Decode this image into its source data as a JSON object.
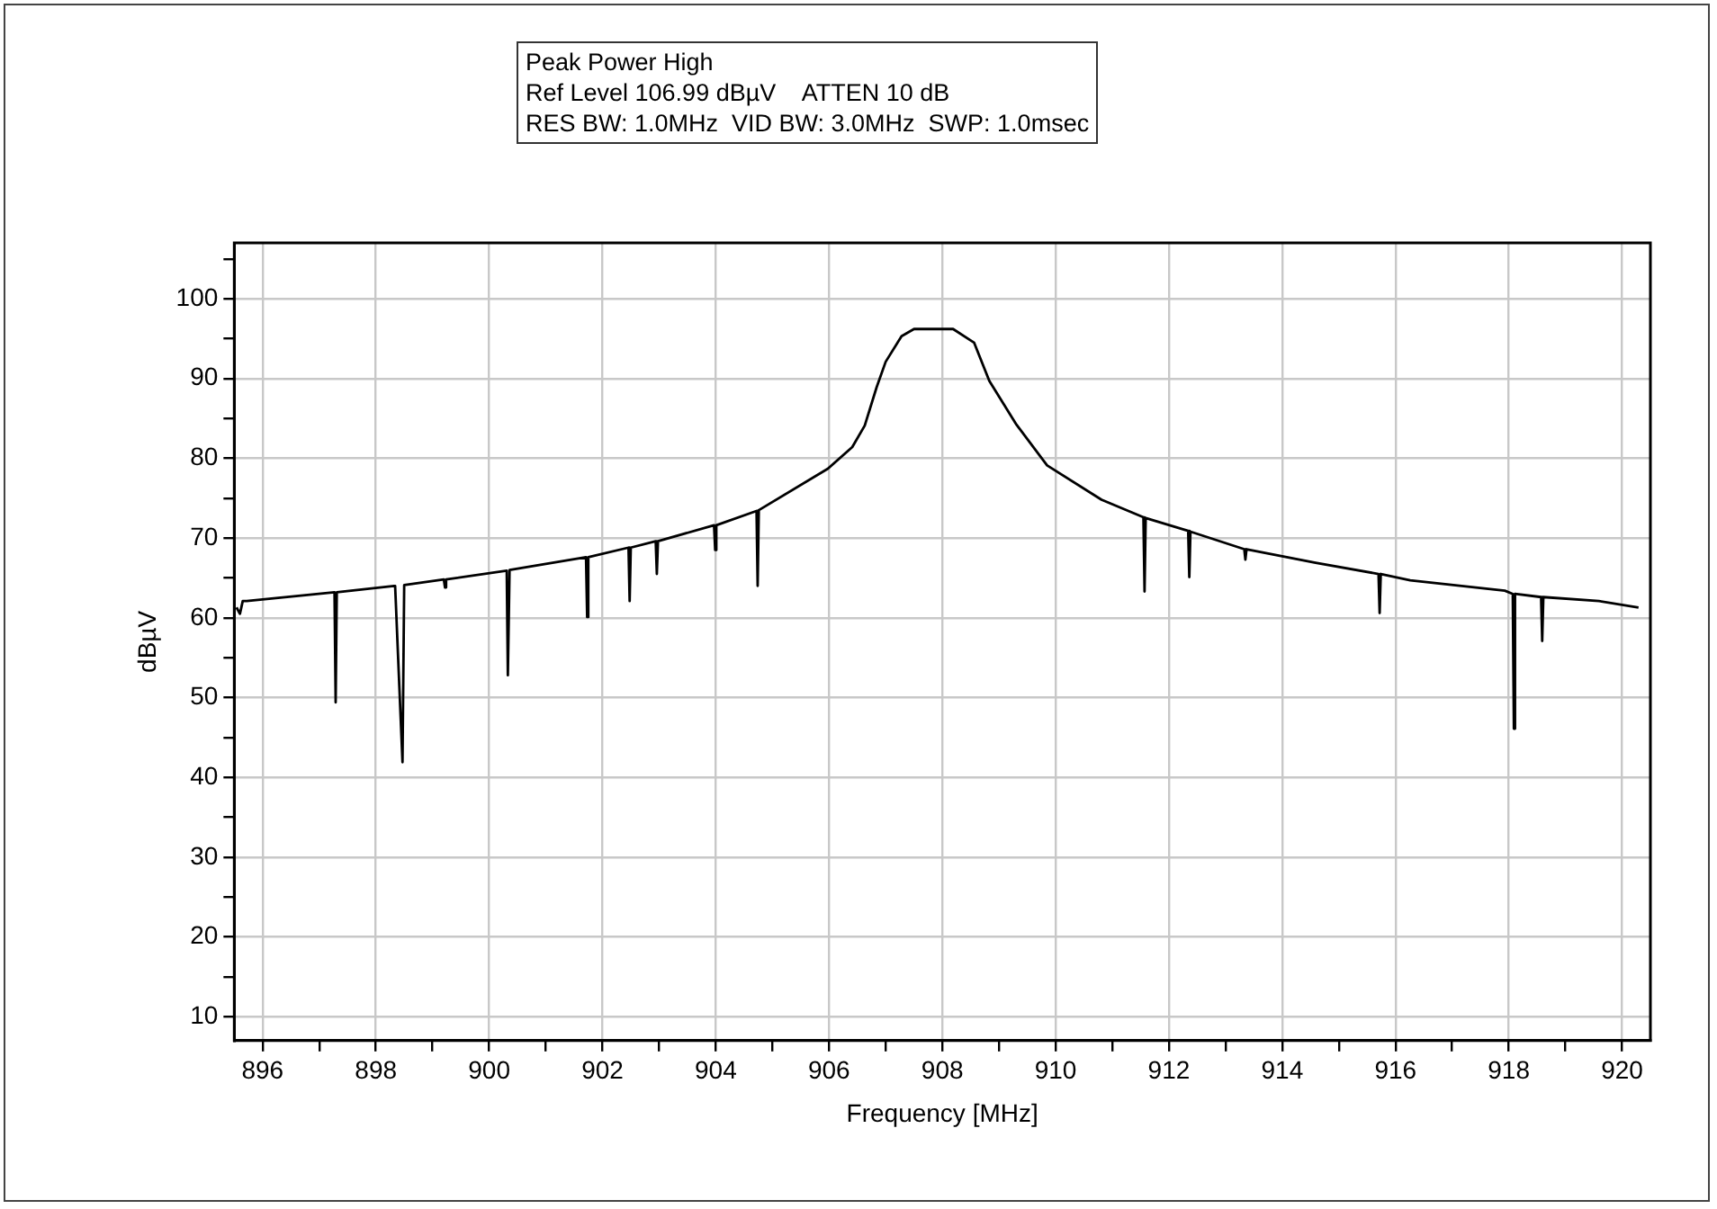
{
  "chart_data": {
    "type": "line",
    "title": "Peak Power High",
    "subtitle": "Ref Level 106.99 dBµV    ATTEN 10 dB",
    "annotations": [
      "RES BW: 1.0MHz  VID BW: 3.0MHz  SWP: 1.0msec"
    ],
    "xlabel": "Frequency [MHz]",
    "ylabel": "dBµV",
    "xlim": [
      895.5,
      920.5
    ],
    "ylim": [
      7,
      107
    ],
    "xticks": [
      896,
      {
        "value": 897,
        "label": null
      },
      898,
      {
        "value": 899,
        "label": null
      },
      900,
      {
        "value": 901,
        "label": null
      },
      902,
      {
        "value": 903,
        "label": null
      },
      904,
      {
        "value": 905,
        "label": null
      },
      906,
      {
        "value": 907,
        "label": null
      },
      908,
      {
        "value": 909,
        "label": null
      },
      910,
      {
        "value": 911,
        "label": null
      },
      912,
      {
        "value": 913,
        "label": null
      },
      914,
      {
        "value": 915,
        "label": null
      },
      916,
      {
        "value": 917,
        "label": null
      },
      918,
      {
        "value": 919,
        "label": null
      },
      920
    ],
    "yticks": [
      10,
      {
        "value": 15,
        "label": null
      },
      20,
      {
        "value": 25,
        "label": null
      },
      30,
      {
        "value": 35,
        "label": null
      },
      40,
      {
        "value": 45,
        "label": null
      },
      50,
      {
        "value": 55,
        "label": null
      },
      60,
      {
        "value": 65,
        "label": null
      },
      70,
      {
        "value": 75,
        "label": null
      },
      80,
      {
        "value": 85,
        "label": null
      },
      90,
      {
        "value": 95,
        "label": null
      },
      100,
      {
        "value": 105,
        "label": null
      }
    ],
    "grid": true,
    "legend": false,
    "marker": "none",
    "line_style": "solid",
    "series": [
      {
        "color": "#000000",
        "x": [
          895.54,
          895.6,
          895.65,
          895.72,
          897.27,
          897.29,
          897.31,
          898.32,
          898.34,
          898.47,
          898.5,
          899.2,
          899.22,
          899.24,
          900.31,
          900.33,
          900.36,
          901.71,
          901.73,
          901.75,
          902.46,
          902.48,
          902.5,
          902.94,
          902.96,
          902.98,
          903.97,
          903.99,
          904.01,
          904.72,
          904.74,
          904.76,
          905.98,
          906.41,
          906.63,
          906.84,
          907.0,
          907.28,
          907.5,
          908.19,
          908.56,
          908.83,
          909.31,
          909.85,
          910.81,
          911.55,
          911.57,
          911.59,
          912.34,
          912.36,
          912.38,
          913.33,
          913.35,
          913.37,
          914.59,
          915.7,
          915.72,
          915.74,
          916.26,
          917.93,
          918.07,
          918.09,
          918.11,
          918.57,
          918.59,
          918.61,
          919.59,
          920.29
        ],
        "values": [
          61.3,
          60.5,
          62.1,
          62.1,
          63.2,
          49.4,
          63.2,
          64.0,
          64.0,
          41.9,
          64.1,
          64.8,
          63.8,
          64.8,
          65.9,
          52.8,
          66.0,
          67.6,
          60.1,
          67.6,
          68.8,
          62.1,
          68.8,
          69.6,
          65.5,
          69.6,
          71.6,
          68.5,
          71.6,
          73.4,
          64.0,
          73.5,
          78.7,
          81.4,
          84.1,
          88.9,
          92.1,
          95.3,
          96.2,
          96.2,
          94.5,
          89.7,
          84.2,
          79.1,
          74.8,
          72.6,
          63.3,
          72.5,
          70.9,
          65.1,
          70.8,
          68.6,
          67.3,
          68.6,
          66.9,
          65.5,
          60.6,
          65.5,
          64.7,
          63.4,
          63.0,
          46.1,
          63.0,
          62.6,
          57.1,
          62.6,
          62.1,
          61.3
        ]
      }
    ]
  }
}
